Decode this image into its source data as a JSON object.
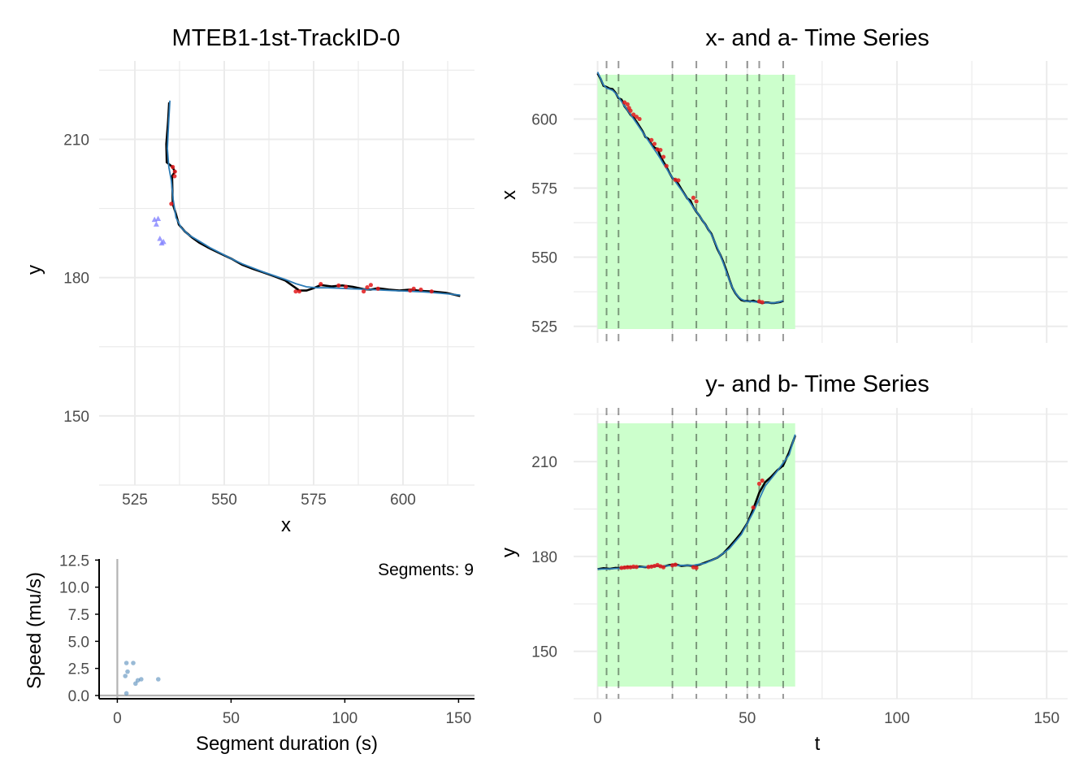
{
  "chart_data": [
    {
      "id": "track",
      "type": "line",
      "title": "MTEB1-1st-TrackID-0",
      "xlabel": "x",
      "ylabel": "y",
      "xlim": [
        515,
        620
      ],
      "ylim": [
        135,
        227
      ],
      "xticks": [
        525,
        550,
        575,
        600
      ],
      "yticks": [
        150,
        180,
        210
      ],
      "colors": {
        "raw": "#000000",
        "smooth": "#2c7bb6",
        "points": "#e31a1c",
        "triangles": "#7b7bff"
      },
      "raw_track": [
        [
          534.6,
          218
        ],
        [
          534.3,
          214
        ],
        [
          533.8,
          209
        ],
        [
          533.9,
          205
        ],
        [
          535.5,
          204
        ],
        [
          536.2,
          203
        ],
        [
          535.4,
          202
        ],
        [
          535.5,
          199
        ],
        [
          535.6,
          196
        ],
        [
          536.4,
          194
        ],
        [
          537.3,
          191.5
        ],
        [
          539,
          190
        ],
        [
          541,
          188.7
        ],
        [
          543,
          187.6
        ],
        [
          546,
          186.3
        ],
        [
          549,
          185.2
        ],
        [
          552,
          184.1
        ],
        [
          555,
          182.8
        ],
        [
          558,
          181.9
        ],
        [
          561,
          181.1
        ],
        [
          564,
          180.3
        ],
        [
          567,
          179.4
        ],
        [
          569,
          178.3
        ],
        [
          571,
          177.2
        ],
        [
          573,
          177.2
        ],
        [
          575,
          177.7
        ],
        [
          577,
          178.4
        ],
        [
          580,
          178.1
        ],
        [
          583,
          178.3
        ],
        [
          586,
          178
        ],
        [
          589,
          177.5
        ],
        [
          591,
          177.4
        ],
        [
          593,
          177.7
        ],
        [
          596,
          177.4
        ],
        [
          599,
          177.2
        ],
        [
          602,
          177.4
        ],
        [
          605,
          177.1
        ],
        [
          608,
          177
        ],
        [
          612,
          176.7
        ],
        [
          616,
          176
        ]
      ],
      "smooth_track": [
        [
          534.8,
          218.4
        ],
        [
          534.4,
          213
        ],
        [
          534.1,
          208
        ],
        [
          534.5,
          204
        ],
        [
          535.2,
          201
        ],
        [
          535.7,
          197
        ],
        [
          536.5,
          193
        ],
        [
          538,
          190.8
        ],
        [
          540,
          189.3
        ],
        [
          543,
          187.9
        ],
        [
          546,
          186.5
        ],
        [
          549,
          185.3
        ],
        [
          552,
          184.1
        ],
        [
          555,
          183
        ],
        [
          558,
          182.1
        ],
        [
          561,
          181.2
        ],
        [
          564,
          180.4
        ],
        [
          567,
          179.6
        ],
        [
          570,
          178.7
        ],
        [
          573,
          178
        ],
        [
          576,
          177.8
        ],
        [
          579,
          177.8
        ],
        [
          582,
          177.7
        ],
        [
          585,
          177.6
        ],
        [
          588,
          177.5
        ],
        [
          591,
          177.4
        ],
        [
          594,
          177.3
        ],
        [
          597,
          177.2
        ],
        [
          600,
          177.1
        ],
        [
          603,
          177
        ],
        [
          606,
          176.9
        ],
        [
          609,
          176.7
        ],
        [
          612,
          176.5
        ],
        [
          616,
          176.2
        ]
      ],
      "red_points": [
        [
          535.6,
          204
        ],
        [
          536.2,
          203
        ],
        [
          536.1,
          202
        ],
        [
          535.2,
          196
        ],
        [
          570,
          177
        ],
        [
          571,
          177
        ],
        [
          577,
          178.6
        ],
        [
          582,
          178.3
        ],
        [
          584,
          178
        ],
        [
          589,
          177
        ],
        [
          590,
          177.9
        ],
        [
          591,
          178.4
        ],
        [
          593,
          177.6
        ],
        [
          602,
          177.2
        ],
        [
          603,
          177.6
        ],
        [
          605,
          177.4
        ],
        [
          608,
          177
        ]
      ],
      "triangles": [
        [
          530.5,
          192.6
        ],
        [
          531.5,
          192.8
        ],
        [
          531,
          191.6
        ],
        [
          532,
          188.5
        ],
        [
          533,
          187.8
        ],
        [
          532.5,
          187.5
        ]
      ]
    },
    {
      "id": "speed",
      "type": "scatter",
      "xlabel": "Segment duration (s)",
      "ylabel": "Speed (mu/s)",
      "annotation": "Segments: 9",
      "xlim": [
        -8,
        157
      ],
      "ylim": [
        -0.3,
        12.6
      ],
      "xticks": [
        0,
        50,
        100,
        150
      ],
      "yticks": [
        "0.0",
        "2.5",
        "5.0",
        "7.5",
        "10.0",
        "12.5"
      ],
      "color": "#4682b4",
      "points": [
        [
          3.5,
          1.8
        ],
        [
          4.5,
          2.2
        ],
        [
          4,
          3
        ],
        [
          7,
          3
        ],
        [
          8,
          1.1
        ],
        [
          9,
          1.4
        ],
        [
          10.5,
          1.5
        ],
        [
          18,
          1.5
        ],
        [
          4,
          0.2
        ]
      ]
    },
    {
      "id": "x-series",
      "type": "line",
      "title": "x- and a- Time Series",
      "ylabel": "x",
      "xlim": [
        -8,
        157
      ],
      "ylim": [
        519,
        621
      ],
      "yticks": [
        525,
        550,
        575,
        600
      ],
      "shaded_range": [
        0,
        66
      ],
      "dashed_vlines": [
        3,
        7,
        25,
        33,
        43,
        50,
        54,
        62
      ],
      "colors": {
        "shade": "#ccffcc",
        "raw": "#000000",
        "smooth": "#2c7bb6",
        "points": "#e31a1c"
      },
      "raw": [
        [
          0,
          616.5
        ],
        [
          1,
          614.5
        ],
        [
          2,
          612
        ],
        [
          3,
          611.6
        ],
        [
          4,
          611
        ],
        [
          5,
          610.8
        ],
        [
          6,
          609.5
        ],
        [
          7,
          607.5
        ],
        [
          8,
          607
        ],
        [
          9,
          604.6
        ],
        [
          10,
          603.2
        ],
        [
          11,
          601.5
        ],
        [
          12,
          600.5
        ],
        [
          13,
          599
        ],
        [
          14,
          597.3
        ],
        [
          15,
          595.6
        ],
        [
          16,
          593.5
        ],
        [
          17,
          592.8
        ],
        [
          18,
          590.8
        ],
        [
          19,
          589.6
        ],
        [
          20,
          589.2
        ],
        [
          21,
          586.5
        ],
        [
          22,
          584.5
        ],
        [
          23,
          582.7
        ],
        [
          24,
          580.5
        ],
        [
          25,
          578.6
        ],
        [
          26,
          578
        ],
        [
          27,
          576.4
        ],
        [
          28,
          574.6
        ],
        [
          29,
          572.9
        ],
        [
          30,
          571.2
        ],
        [
          31,
          570.5
        ],
        [
          32,
          568.1
        ],
        [
          33,
          566.4
        ],
        [
          34,
          565
        ],
        [
          35,
          563.3
        ],
        [
          36,
          561.9
        ],
        [
          37,
          560
        ],
        [
          38,
          558.5
        ],
        [
          39,
          555.8
        ],
        [
          40,
          553
        ],
        [
          41,
          550.8
        ],
        [
          42,
          548.3
        ],
        [
          43,
          545.3
        ],
        [
          44,
          542
        ],
        [
          45,
          539
        ],
        [
          46,
          537
        ],
        [
          47,
          535.6
        ],
        [
          48,
          534.5
        ],
        [
          49,
          534.2
        ],
        [
          50,
          534.2
        ],
        [
          51,
          534
        ],
        [
          52,
          534.3
        ],
        [
          53,
          533.9
        ],
        [
          54,
          533.7
        ],
        [
          55,
          533.4
        ],
        [
          56,
          533.6
        ],
        [
          57,
          533.6
        ],
        [
          58,
          533.4
        ],
        [
          59,
          533.4
        ],
        [
          60,
          533.6
        ],
        [
          61,
          533.8
        ],
        [
          62,
          534.2
        ]
      ],
      "smooth": [
        [
          0,
          617
        ],
        [
          1,
          614.6
        ],
        [
          2,
          612.3
        ],
        [
          3,
          611.2
        ],
        [
          4,
          610.8
        ],
        [
          5,
          610.4
        ],
        [
          6,
          609.3
        ],
        [
          7,
          607.8
        ],
        [
          8,
          606.3
        ],
        [
          9,
          604.7
        ],
        [
          10,
          603.2
        ],
        [
          11,
          601.6
        ],
        [
          12,
          600.1
        ],
        [
          13,
          598.5
        ],
        [
          14,
          596.9
        ],
        [
          15,
          595.3
        ],
        [
          16,
          593.7
        ],
        [
          17,
          592.1
        ],
        [
          18,
          590.5
        ],
        [
          19,
          588.9
        ],
        [
          20,
          587.3
        ],
        [
          21,
          585.6
        ],
        [
          22,
          583.8
        ],
        [
          23,
          582.1
        ],
        [
          24,
          580.4
        ],
        [
          25,
          578.8
        ],
        [
          26,
          577.3
        ],
        [
          27,
          575.8
        ],
        [
          28,
          574.3
        ],
        [
          29,
          572.8
        ],
        [
          30,
          571.2
        ],
        [
          31,
          569.6
        ],
        [
          32,
          568
        ],
        [
          33,
          566.5
        ],
        [
          34,
          565
        ],
        [
          35,
          563.4
        ],
        [
          36,
          561.8
        ],
        [
          37,
          560.1
        ],
        [
          38,
          558.2
        ],
        [
          39,
          555.9
        ],
        [
          40,
          553.4
        ],
        [
          41,
          550.7
        ],
        [
          42,
          547.9
        ],
        [
          43,
          544.8
        ],
        [
          44,
          541.8
        ],
        [
          45,
          539.1
        ],
        [
          46,
          537.1
        ],
        [
          47,
          535.7
        ],
        [
          48,
          534.8
        ],
        [
          49,
          534.3
        ],
        [
          50,
          534.1
        ],
        [
          51,
          534
        ],
        [
          52,
          533.9
        ],
        [
          53,
          533.8
        ],
        [
          54,
          533.7
        ],
        [
          55,
          533.6
        ],
        [
          56,
          533.5
        ],
        [
          57,
          533.5
        ],
        [
          58,
          533.5
        ],
        [
          59,
          533.5
        ],
        [
          60,
          533.6
        ],
        [
          61,
          533.9
        ],
        [
          62,
          534.3
        ]
      ],
      "red_points": [
        [
          9,
          606
        ],
        [
          10,
          605.3
        ],
        [
          10.5,
          604
        ],
        [
          11,
          603
        ],
        [
          12,
          601.6
        ],
        [
          13,
          600.8
        ],
        [
          14,
          600
        ],
        [
          18,
          592.4
        ],
        [
          19,
          591
        ],
        [
          20,
          589
        ],
        [
          21,
          588.8
        ],
        [
          22,
          586.3
        ],
        [
          23,
          583
        ],
        [
          26,
          578
        ],
        [
          27,
          577.8
        ],
        [
          32,
          571.5
        ],
        [
          33,
          570.2
        ],
        [
          54,
          534
        ],
        [
          55,
          533.7
        ]
      ]
    },
    {
      "id": "y-series",
      "type": "line",
      "title": "y- and b- Time Series",
      "xlabel": "t",
      "ylabel": "y",
      "xlim": [
        -8,
        157
      ],
      "ylim": [
        135,
        227
      ],
      "xticks": [
        0,
        50,
        100,
        150
      ],
      "yticks": [
        150,
        180,
        210
      ],
      "shaded_range": [
        0,
        66
      ],
      "dashed_vlines": [
        3,
        7,
        25,
        33,
        43,
        50,
        54,
        62
      ],
      "colors": {
        "shade": "#ccffcc",
        "raw": "#000000",
        "smooth": "#2c7bb6",
        "points": "#e31a1c"
      },
      "raw": [
        [
          0,
          176
        ],
        [
          2,
          176.3
        ],
        [
          4,
          176.1
        ],
        [
          6,
          176.4
        ],
        [
          8,
          176.3
        ],
        [
          10,
          176.8
        ],
        [
          12,
          176.5
        ],
        [
          14,
          176.8
        ],
        [
          16,
          176.6
        ],
        [
          18,
          176.9
        ],
        [
          20,
          177
        ],
        [
          22,
          176.8
        ],
        [
          24,
          177.3
        ],
        [
          26,
          177.5
        ],
        [
          28,
          177
        ],
        [
          30,
          177.2
        ],
        [
          32,
          177
        ],
        [
          34,
          177.4
        ],
        [
          36,
          178.1
        ],
        [
          38,
          178.8
        ],
        [
          40,
          179.6
        ],
        [
          42,
          181
        ],
        [
          44,
          183
        ],
        [
          46,
          185.2
        ],
        [
          48,
          187.5
        ],
        [
          50,
          190.5
        ],
        [
          52,
          195
        ],
        [
          54,
          200.2
        ],
        [
          56,
          203.5
        ],
        [
          58,
          205.2
        ],
        [
          60,
          207.2
        ],
        [
          62,
          208.8
        ],
        [
          64,
          213
        ],
        [
          66,
          218.2
        ]
      ],
      "smooth": [
        [
          0,
          176
        ],
        [
          4,
          176.1
        ],
        [
          8,
          176.3
        ],
        [
          12,
          176.5
        ],
        [
          16,
          176.7
        ],
        [
          20,
          176.9
        ],
        [
          24,
          177.1
        ],
        [
          28,
          177.2
        ],
        [
          32,
          177.2
        ],
        [
          36,
          177.9
        ],
        [
          40,
          179.6
        ],
        [
          44,
          182.5
        ],
        [
          48,
          187
        ],
        [
          52,
          194
        ],
        [
          56,
          202.3
        ],
        [
          60,
          207
        ],
        [
          64,
          212.2
        ],
        [
          66,
          218.6
        ]
      ],
      "red_points": [
        [
          8,
          176.4
        ],
        [
          9,
          176.5
        ],
        [
          10,
          176.6
        ],
        [
          11,
          176.6
        ],
        [
          12,
          176.8
        ],
        [
          13,
          176.7
        ],
        [
          17,
          176.7
        ],
        [
          18,
          176.8
        ],
        [
          19,
          177
        ],
        [
          20,
          177.3
        ],
        [
          21,
          176.9
        ],
        [
          22,
          176.6
        ],
        [
          25,
          177.2
        ],
        [
          26,
          177.4
        ],
        [
          32,
          176.6
        ],
        [
          33,
          176.4
        ],
        [
          52,
          195.5
        ],
        [
          54,
          203
        ],
        [
          55,
          204
        ]
      ]
    }
  ]
}
